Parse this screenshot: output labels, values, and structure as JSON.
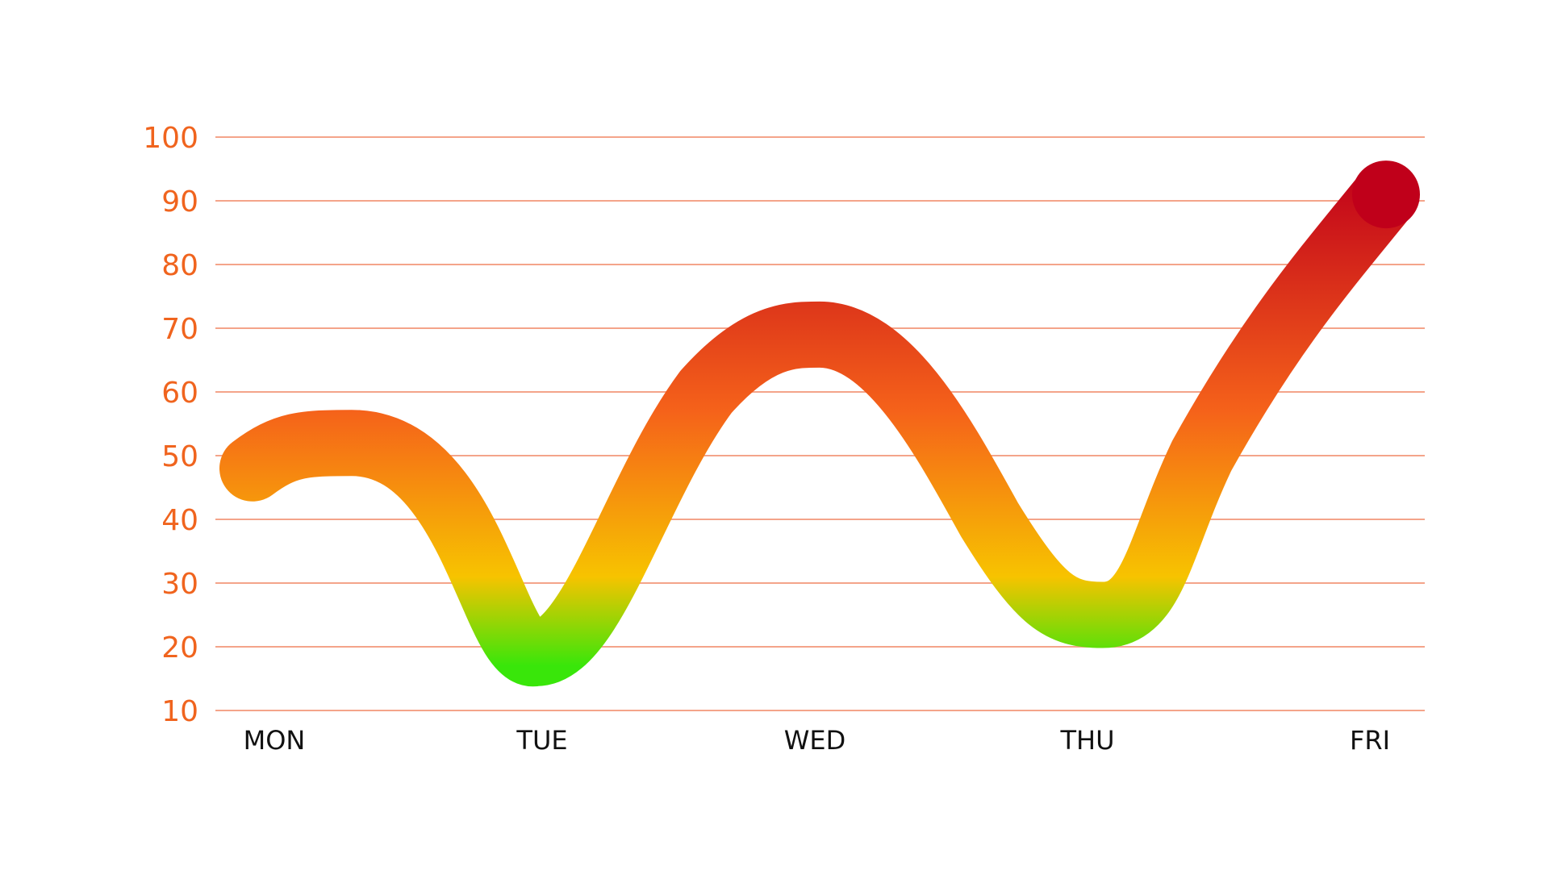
{
  "chart_data": {
    "type": "line",
    "title": "",
    "xlabel": "",
    "ylabel": "",
    "categories": [
      "MON",
      "TUE",
      "WED",
      "THU",
      "FRI"
    ],
    "series": [
      {
        "values": [
          48,
          19,
          69,
          25,
          91
        ]
      }
    ],
    "y_ticks": [
      100,
      90,
      80,
      70,
      60,
      50,
      40,
      30,
      20,
      10
    ],
    "ylim": [
      10,
      100
    ],
    "grid": true,
    "legend": "none",
    "gradient": {
      "low_color": "#39e60a",
      "mid_color": "#f7c300",
      "orange_color": "#f5621a",
      "high_color": "#c0001a",
      "end_marker_color": "#c0001a"
    },
    "axis_label_color": "#f0641e",
    "category_label_color": "#111111",
    "grid_color": "#f4a48a"
  }
}
